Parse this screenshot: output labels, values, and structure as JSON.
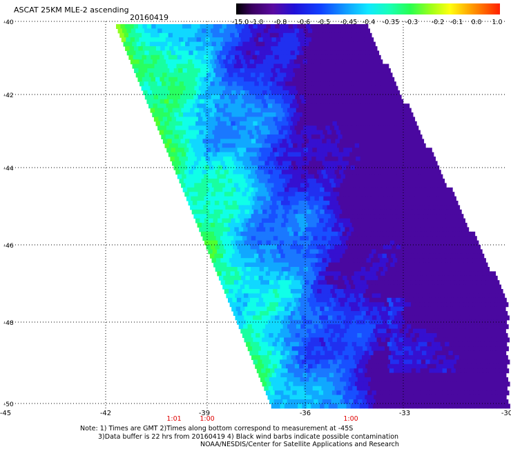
{
  "header": {
    "title": "ASCAT 25KM MLE-2 ascending",
    "date": "20160419"
  },
  "colorbar": {
    "labels": [
      "-15.0",
      "-1.0",
      "-0.8",
      "-0.6",
      "-0.5",
      "-0.45",
      "-0.4",
      "-0.35",
      "-0.3",
      "-0.2",
      "-0.1",
      "0.0",
      "1.0"
    ],
    "colors": [
      "#3a0060",
      "#5a0aa0",
      "#3010c8",
      "#1030f0",
      "#1e6cff",
      "#1aa8ff",
      "#10e0ff",
      "#18ffc0",
      "#20ff60",
      "#80ff20",
      "#e8ff10",
      "#ffb000",
      "#ff3000"
    ]
  },
  "axes": {
    "lat_labels": [
      "-40",
      "-42",
      "-44",
      "-46",
      "-48",
      "-50"
    ],
    "lon_labels": [
      "-45",
      "-42",
      "-39",
      "-36",
      "-33",
      "-30"
    ]
  },
  "times": {
    "labels": [
      "1:01",
      "1:00",
      "1:00"
    ],
    "color": "#e00000"
  },
  "notes": {
    "line1": "Note: 1) Times are GMT 2)Times along bottom correspond to measurement at -45S",
    "line2": "3)Data buffer is 22 hrs from 20160419 4) Black wind barbs indicate possible contamination",
    "line3": "NOAA/NESDIS/Center for Satellite Applications and Research"
  }
}
